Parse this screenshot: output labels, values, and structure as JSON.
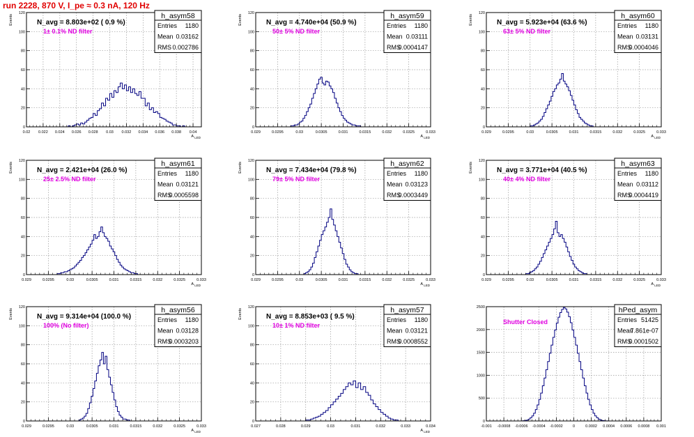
{
  "header": {
    "run_title": "run 2228,   870 V, I_pe ≈ 0.3 nA, 120 Hz"
  },
  "colors": {
    "frame": "#000000",
    "grid": "#9a9a9a",
    "histogram": "#000080",
    "annotation": "#e000e0",
    "run_title": "#e00000"
  },
  "chart_data": [
    {
      "type": "histogram",
      "name": "h_asym58",
      "title": "N_avg = 8.803e+02 ( 0.9 %)",
      "annotation": "1± 0.1% ND filter",
      "xlabel": "A_LED",
      "ylabel": "Events",
      "stats": {
        "Entries": "1180",
        "Mean": "0.03162",
        "RMS": "0.002786"
      },
      "xlim": [
        0.02,
        0.041
      ],
      "ylim": [
        0,
        120
      ],
      "xticks": [
        0.02,
        0.022,
        0.024,
        0.026,
        0.028,
        0.03,
        0.032,
        0.034,
        0.036,
        0.038,
        0.04
      ],
      "xtick_labels": [
        "0.02",
        "0.022",
        "0.024",
        "0.026",
        "0.028",
        "0.03",
        "0.032",
        "0.034",
        "0.036",
        "0.038",
        "0.04"
      ],
      "yticks": [
        0,
        20,
        40,
        60,
        80,
        100,
        120
      ],
      "ytick_labels": [
        "0",
        "20",
        "40",
        "60",
        "80",
        "100",
        "120"
      ],
      "bins": {
        "start": 0.025,
        "width": 0.00025,
        "counts": [
          1,
          0,
          1,
          2,
          3,
          2,
          4,
          3,
          5,
          7,
          9,
          10,
          14,
          12,
          17,
          19,
          25,
          22,
          30,
          28,
          35,
          31,
          38,
          36,
          42,
          46,
          40,
          44,
          38,
          42,
          36,
          40,
          35,
          33,
          37,
          30,
          30,
          22,
          25,
          18,
          20,
          15,
          16,
          14,
          10,
          9,
          8,
          6,
          5,
          4,
          2,
          2,
          1,
          1,
          0,
          1
        ]
      }
    },
    {
      "type": "histogram",
      "name": "h_asym59",
      "title": "N_avg = 4.740e+04 (50.9 %)",
      "annotation": "50± 5% ND filter",
      "xlabel": "A_LED",
      "ylabel": "Events",
      "stats": {
        "Entries": "1180",
        "Mean": "0.03111",
        "RMS": "0.0004147"
      },
      "xlim": [
        0.029,
        0.033
      ],
      "ylim": [
        0,
        120
      ],
      "xticks": [
        0.029,
        0.0295,
        0.03,
        0.0305,
        0.031,
        0.0315,
        0.032,
        0.0325,
        0.033
      ],
      "xtick_labels": [
        "0.029",
        "0.0295",
        "0.03",
        "0.0305",
        "0.031",
        "0.0315",
        "0.032",
        "0.0325",
        "0.033"
      ],
      "yticks": [
        0,
        20,
        40,
        60,
        80,
        100,
        120
      ],
      "ytick_labels": [
        "0",
        "20",
        "40",
        "60",
        "80",
        "100",
        "120"
      ],
      "bins": {
        "start": 0.0298,
        "width": 4e-05,
        "counts": [
          1,
          1,
          2,
          2,
          3,
          5,
          6,
          9,
          12,
          16,
          20,
          24,
          30,
          35,
          40,
          45,
          50,
          52,
          46,
          44,
          48,
          47,
          43,
          40,
          36,
          30,
          25,
          20,
          16,
          12,
          9,
          7,
          5,
          4,
          3,
          2,
          2,
          1,
          1,
          1
        ]
      }
    },
    {
      "type": "histogram",
      "name": "h_asym60",
      "title": "N_avg = 5.923e+04 (63.6 %)",
      "annotation": "63± 5% ND filter",
      "xlabel": "A_LED",
      "ylabel": "Events",
      "stats": {
        "Entries": "1180",
        "Mean": "0.03131",
        "RMS": "0.0004046"
      },
      "xlim": [
        0.029,
        0.033
      ],
      "ylim": [
        0,
        120
      ],
      "xticks": [
        0.029,
        0.0295,
        0.03,
        0.0305,
        0.031,
        0.0315,
        0.032,
        0.0325,
        0.033
      ],
      "xtick_labels": [
        "0.029",
        "0.0295",
        "0.03",
        "0.0305",
        "0.031",
        "0.0315",
        "0.032",
        "0.0325",
        "0.033"
      ],
      "yticks": [
        0,
        20,
        40,
        60,
        80,
        100,
        120
      ],
      "ytick_labels": [
        "0",
        "20",
        "40",
        "60",
        "80",
        "100",
        "120"
      ],
      "bins": {
        "start": 0.03,
        "width": 4e-05,
        "counts": [
          1,
          1,
          2,
          3,
          4,
          6,
          8,
          11,
          15,
          19,
          23,
          27,
          32,
          37,
          40,
          44,
          46,
          50,
          56,
          48,
          45,
          42,
          38,
          33,
          28,
          23,
          18,
          14,
          10,
          8,
          6,
          4,
          3,
          2,
          1,
          1
        ]
      }
    },
    {
      "type": "histogram",
      "name": "h_asym61",
      "title": "N_avg = 2.421e+04 (26.0 %)",
      "annotation": "25± 2.5% ND filter",
      "xlabel": "A_LED",
      "ylabel": "Events",
      "stats": {
        "Entries": "1180",
        "Mean": "0.03121",
        "RMS": "0.0005598"
      },
      "xlim": [
        0.029,
        0.033
      ],
      "ylim": [
        0,
        120
      ],
      "xticks": [
        0.029,
        0.0295,
        0.03,
        0.0305,
        0.031,
        0.0315,
        0.032,
        0.0325,
        0.033
      ],
      "xtick_labels": [
        "0.029",
        "0.0295",
        "0.03",
        "0.0305",
        "0.031",
        "0.0315",
        "0.032",
        "0.0325",
        "0.033"
      ],
      "yticks": [
        0,
        20,
        40,
        60,
        80,
        100,
        120
      ],
      "ytick_labels": [
        "0",
        "20",
        "40",
        "60",
        "80",
        "100",
        "120"
      ],
      "bins": {
        "start": 0.0297,
        "width": 4e-05,
        "counts": [
          1,
          1,
          2,
          2,
          3,
          3,
          4,
          5,
          6,
          7,
          9,
          11,
          13,
          15,
          18,
          20,
          23,
          26,
          29,
          32,
          36,
          42,
          38,
          40,
          45,
          50,
          44,
          40,
          38,
          35,
          30,
          27,
          24,
          20,
          16,
          13,
          10,
          8,
          6,
          5,
          4,
          3,
          2,
          2,
          1,
          1
        ]
      }
    },
    {
      "type": "histogram",
      "name": "h_asym62",
      "title": "N_avg = 7.434e+04 (79.8 %)",
      "annotation": "79± 5% ND filter",
      "xlabel": "A_LED",
      "ylabel": "Events",
      "stats": {
        "Entries": "1180",
        "Mean": "0.03123",
        "RMS": "0.0003449"
      },
      "xlim": [
        0.029,
        0.033
      ],
      "ylim": [
        0,
        120
      ],
      "xticks": [
        0.029,
        0.0295,
        0.03,
        0.0305,
        0.031,
        0.0315,
        0.032,
        0.0325,
        0.033
      ],
      "xtick_labels": [
        "0.029",
        "0.0295",
        "0.03",
        "0.0305",
        "0.031",
        "0.0315",
        "0.032",
        "0.0325",
        "0.033"
      ],
      "yticks": [
        0,
        20,
        40,
        60,
        80,
        100,
        120
      ],
      "ytick_labels": [
        "0",
        "20",
        "40",
        "60",
        "80",
        "100",
        "120"
      ],
      "bins": {
        "start": 0.0301,
        "width": 4e-05,
        "counts": [
          1,
          2,
          3,
          5,
          8,
          12,
          18,
          24,
          30,
          36,
          42,
          46,
          50,
          55,
          60,
          69,
          58,
          52,
          46,
          40,
          34,
          28,
          22,
          16,
          11,
          8,
          5,
          3,
          2,
          1,
          1
        ]
      }
    },
    {
      "type": "histogram",
      "name": "h_asym63",
      "title": "N_avg = 3.771e+04 (40.5 %)",
      "annotation": "40± 4% ND filter",
      "xlabel": "A_LED",
      "ylabel": "Events",
      "stats": {
        "Entries": "1180",
        "Mean": "0.03112",
        "RMS": "0.0004419"
      },
      "xlim": [
        0.029,
        0.033
      ],
      "ylim": [
        0,
        120
      ],
      "xticks": [
        0.029,
        0.0295,
        0.03,
        0.0305,
        0.031,
        0.0315,
        0.032,
        0.0325,
        0.033
      ],
      "xtick_labels": [
        "0.029",
        "0.0295",
        "0.03",
        "0.0305",
        "0.031",
        "0.0315",
        "0.032",
        "0.0325",
        "0.033"
      ],
      "yticks": [
        0,
        20,
        40,
        60,
        80,
        100,
        120
      ],
      "ytick_labels": [
        "0",
        "20",
        "40",
        "60",
        "80",
        "100",
        "120"
      ],
      "bins": {
        "start": 0.0299,
        "width": 4e-05,
        "counts": [
          1,
          1,
          2,
          3,
          4,
          6,
          8,
          11,
          14,
          18,
          22,
          26,
          30,
          34,
          38,
          42,
          48,
          56,
          44,
          40,
          42,
          38,
          34,
          29,
          24,
          19,
          15,
          11,
          8,
          6,
          4,
          3,
          2,
          1,
          1
        ]
      }
    },
    {
      "type": "histogram",
      "name": "h_asym56",
      "title": "N_avg = 9.314e+04 (100.0 %)",
      "annotation": "100% (No filter)",
      "xlabel": "A_LED",
      "ylabel": "Events",
      "stats": {
        "Entries": "1180",
        "Mean": "0.03128",
        "RMS": "0.0003203"
      },
      "xlim": [
        0.029,
        0.033
      ],
      "ylim": [
        0,
        120
      ],
      "xticks": [
        0.029,
        0.0295,
        0.03,
        0.0305,
        0.031,
        0.0315,
        0.032,
        0.0325,
        0.033
      ],
      "xtick_labels": [
        "0.029",
        "0.0295",
        "0.03",
        "0.0305",
        "0.031",
        "0.0315",
        "0.032",
        "0.0325",
        "0.033"
      ],
      "yticks": [
        0,
        20,
        40,
        60,
        80,
        100,
        120
      ],
      "ytick_labels": [
        "0",
        "20",
        "40",
        "60",
        "80",
        "100",
        "120"
      ],
      "bins": {
        "start": 0.0302,
        "width": 4e-05,
        "counts": [
          1,
          2,
          3,
          5,
          8,
          13,
          19,
          26,
          34,
          42,
          50,
          58,
          64,
          72,
          60,
          68,
          54,
          46,
          38,
          30,
          22,
          15,
          10,
          6,
          4,
          2,
          2,
          1,
          1
        ]
      }
    },
    {
      "type": "histogram",
      "name": "h_asym57",
      "title": "N_avg = 8.853e+03 ( 9.5 %)",
      "annotation": "10± 1% ND filter",
      "xlabel": "A_LED",
      "ylabel": "Events",
      "stats": {
        "Entries": "1180",
        "Mean": "0.03121",
        "RMS": "0.0008552"
      },
      "xlim": [
        0.027,
        0.034
      ],
      "ylim": [
        0,
        120
      ],
      "xticks": [
        0.027,
        0.028,
        0.029,
        0.03,
        0.031,
        0.032,
        0.033,
        0.034
      ],
      "xtick_labels": [
        "0.027",
        "0.028",
        "0.029",
        "0.03",
        "0.031",
        "0.032",
        "0.033",
        "0.034"
      ],
      "yticks": [
        0,
        20,
        40,
        60,
        80,
        100,
        120
      ],
      "ytick_labels": [
        "0",
        "20",
        "40",
        "60",
        "80",
        "100",
        "120"
      ],
      "bins": {
        "start": 0.029,
        "width": 0.0001,
        "counts": [
          1,
          1,
          2,
          3,
          4,
          5,
          7,
          9,
          11,
          14,
          17,
          20,
          23,
          26,
          29,
          33,
          36,
          40,
          38,
          42,
          35,
          40,
          33,
          36,
          30,
          27,
          22,
          18,
          15,
          12,
          9,
          7,
          5,
          3,
          2,
          1,
          1
        ]
      }
    },
    {
      "type": "histogram",
      "name": "hPed_asym",
      "title": "",
      "annotation": "Shutter Closed",
      "xlabel": "",
      "ylabel": "",
      "stats": {
        "Entries": "51425",
        "Mean": "7.861e-07",
        "RMS": "0.0001502"
      },
      "xlim": [
        -0.001,
        0.001
      ],
      "ylim": [
        0,
        2500
      ],
      "xticks": [
        -0.001,
        -0.0008,
        -0.0006,
        -0.0004,
        -0.0002,
        0,
        0.0002,
        0.0004,
        0.0006,
        0.0008,
        0.001
      ],
      "xtick_labels": [
        "-0.001",
        "-0.0008",
        "-0.0006",
        "-0.0004",
        "-0.0002",
        "0",
        "0.0002",
        "0.0004",
        "0.0006",
        "0.0008",
        "0.001"
      ],
      "yticks": [
        0,
        500,
        1000,
        1500,
        2000,
        2500
      ],
      "ytick_labels": [
        "0",
        "500",
        "1000",
        "1500",
        "2000",
        "2500"
      ],
      "bins": {
        "start": -0.0006,
        "width": 2e-05,
        "counts": [
          2,
          5,
          10,
          20,
          40,
          70,
          110,
          170,
          250,
          350,
          470,
          610,
          770,
          940,
          1120,
          1300,
          1480,
          1660,
          1830,
          1990,
          2140,
          2270,
          2370,
          2440,
          2480,
          2450,
          2380,
          2280,
          2150,
          1990,
          1830,
          1660,
          1480,
          1300,
          1120,
          940,
          770,
          610,
          470,
          350,
          250,
          170,
          110,
          70,
          40,
          20,
          10,
          5,
          2,
          1
        ]
      }
    }
  ]
}
